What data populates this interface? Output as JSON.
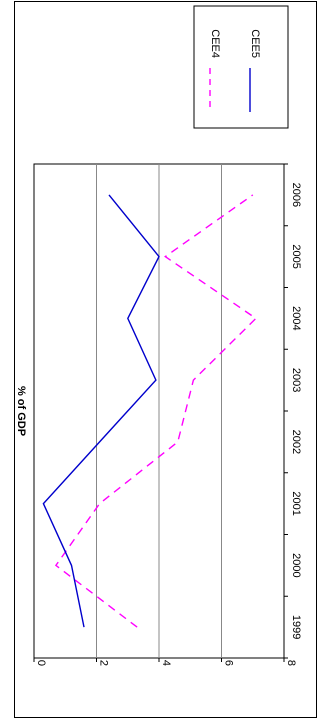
{
  "chart_data": {
    "type": "line",
    "orientation": "rotated-90-clockwise",
    "x": [
      "1999",
      "2000",
      "2001",
      "2002",
      "2003",
      "2004",
      "2005",
      "2006"
    ],
    "series": [
      {
        "name": "CEE4",
        "color": "#ff00ff",
        "dash": "dashed",
        "values": [
          3.3,
          0.7,
          2.1,
          4.6,
          5.1,
          7.1,
          4.2,
          7.0
        ]
      },
      {
        "name": "CEE5",
        "color": "#0000cc",
        "dash": "solid",
        "values": [
          1.6,
          1.2,
          0.3,
          2.1,
          3.9,
          3.0,
          4.0,
          2.4
        ]
      }
    ],
    "ylabel": "% of GDP",
    "ylim": [
      0,
      8
    ],
    "yticks": [
      "0",
      "2",
      "4",
      "6",
      "8"
    ],
    "grid": true,
    "legend_position": "top"
  }
}
